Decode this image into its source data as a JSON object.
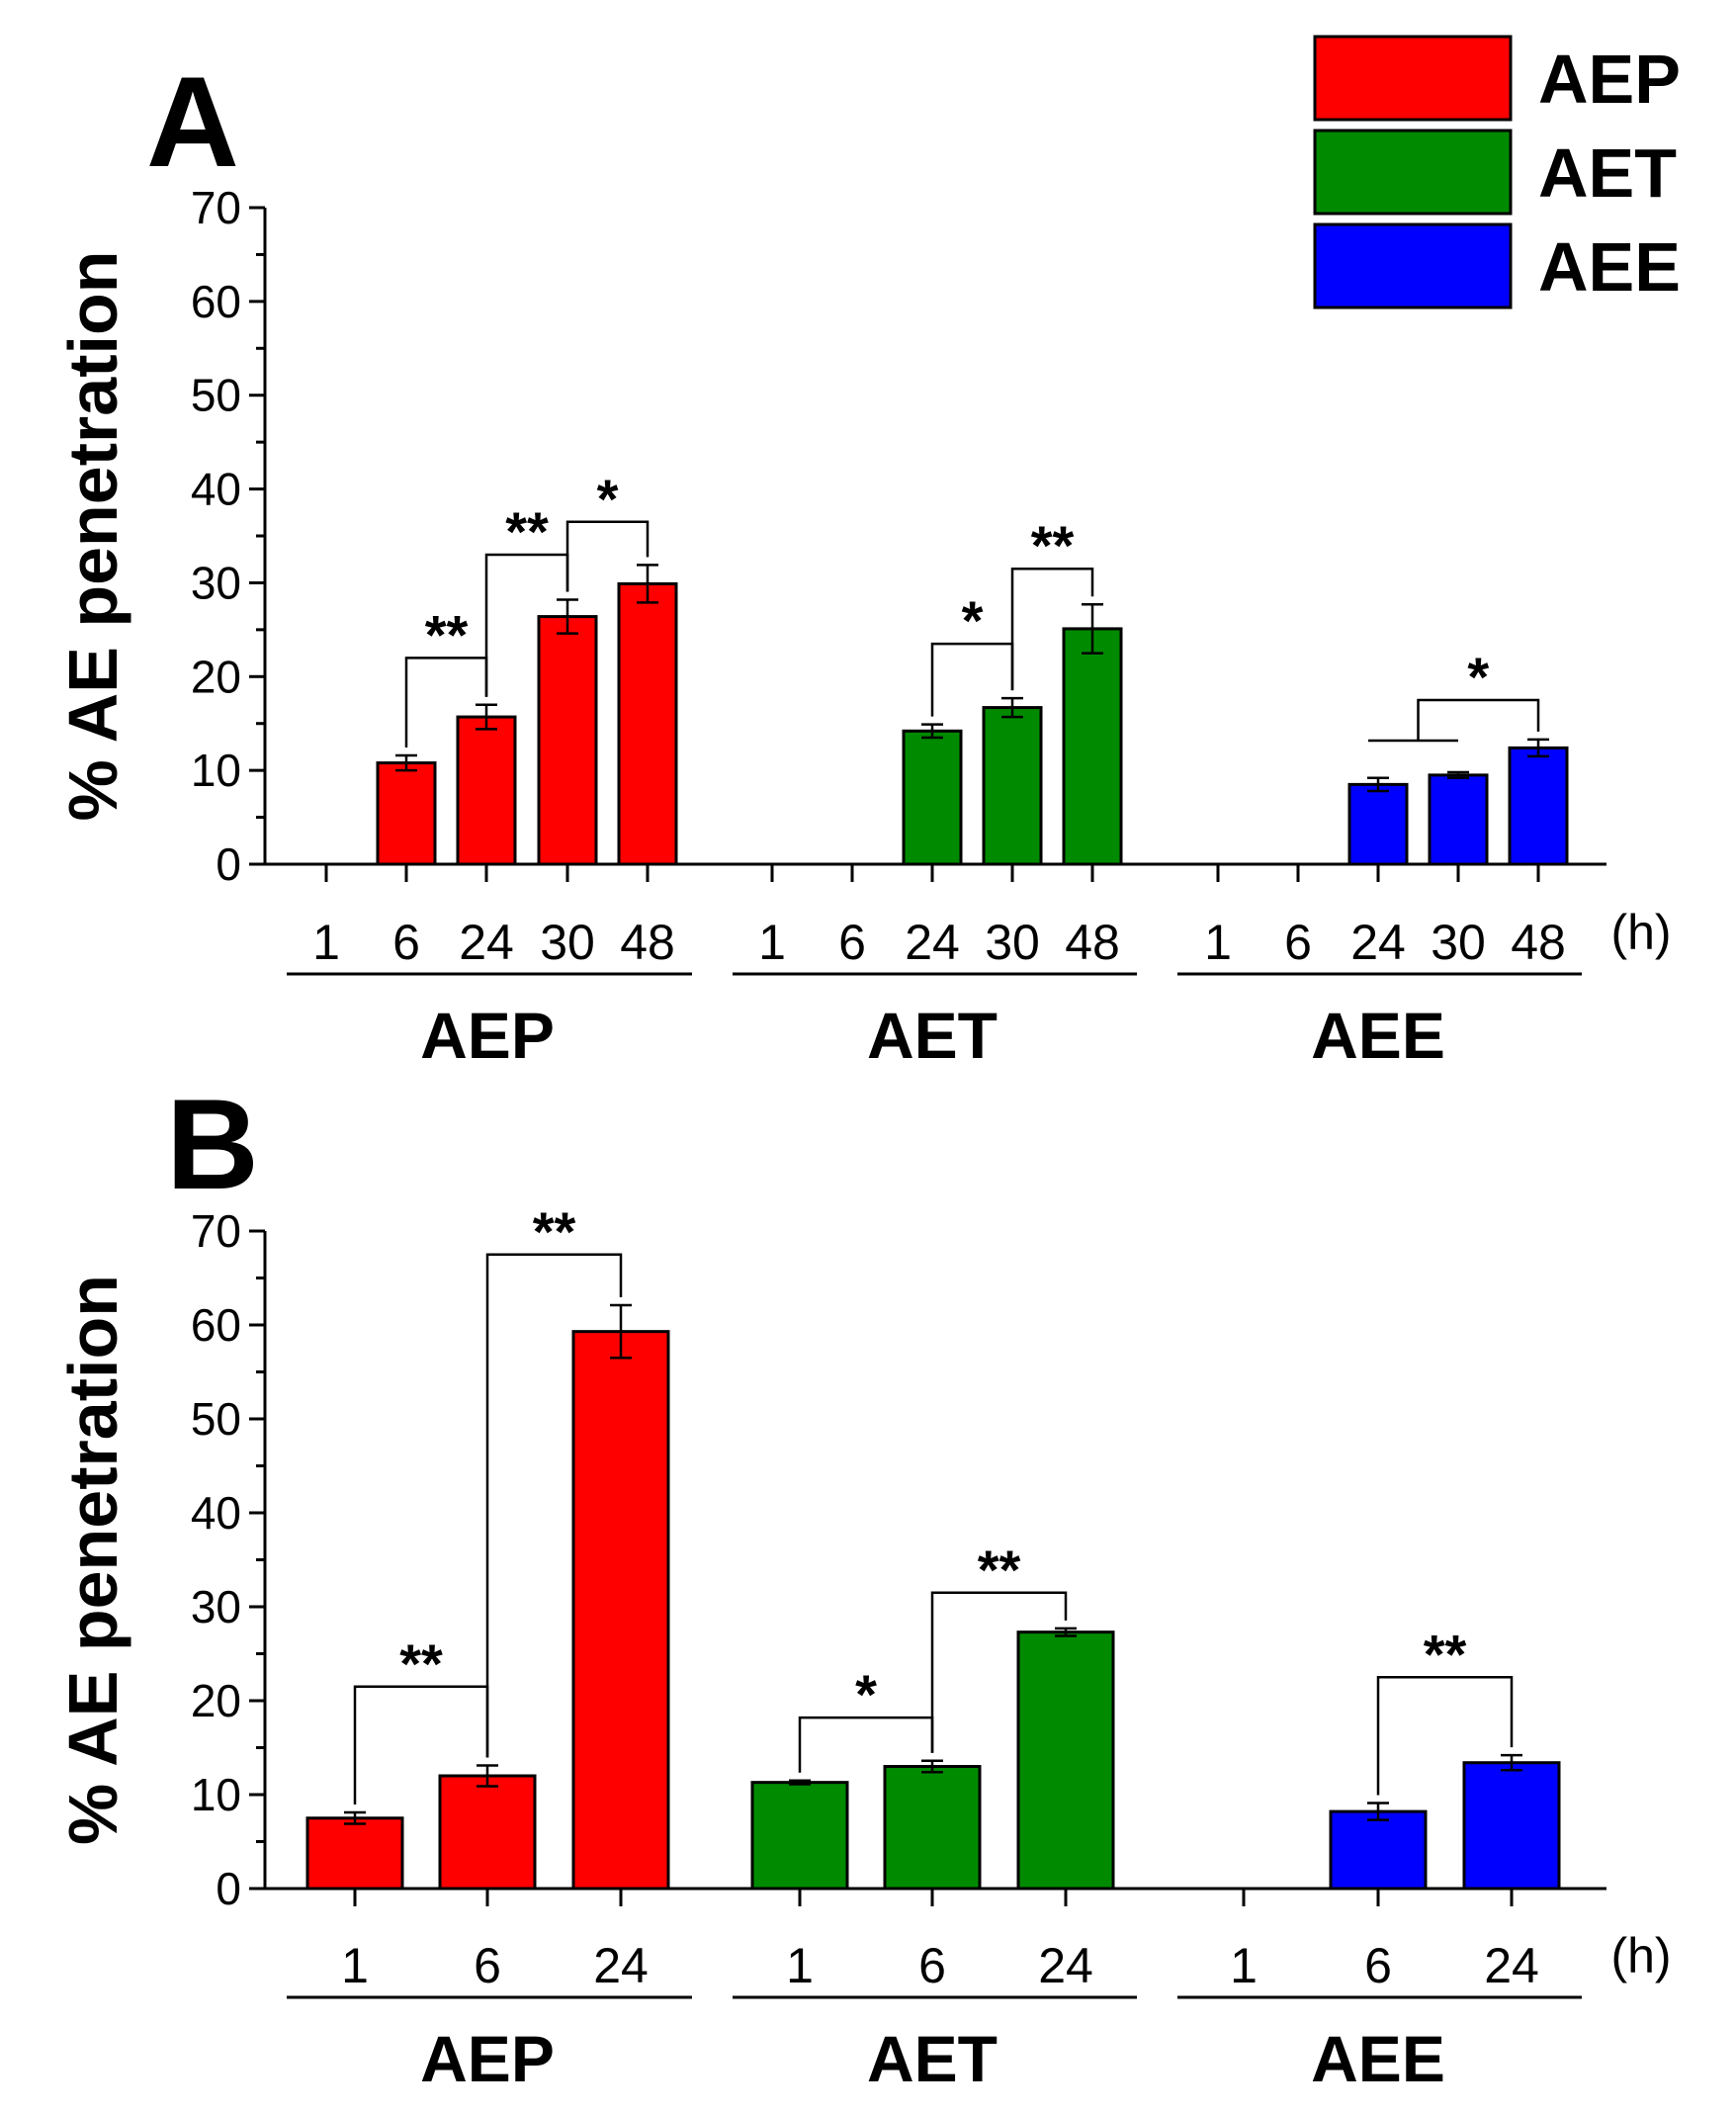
{
  "colors": {
    "AEP": "#ff0000",
    "AET": "#008a00",
    "AEE": "#0000ff"
  },
  "legend": [
    {
      "label": "AEP",
      "color": "#ff0000"
    },
    {
      "label": "AET",
      "color": "#008a00"
    },
    {
      "label": "AEE",
      "color": "#0000ff"
    }
  ],
  "chart_data": [
    {
      "panel": "A",
      "type": "bar",
      "ylabel": "% AE penetration",
      "ylim": [
        0,
        70
      ],
      "yticks": [
        0,
        10,
        20,
        30,
        40,
        50,
        60,
        70
      ],
      "x_unit": "(h)",
      "groups": [
        {
          "name": "AEP",
          "times": [
            "1",
            "6",
            "24",
            "30",
            "48"
          ],
          "values": [
            null,
            10.8,
            15.7,
            26.4,
            29.9
          ],
          "errors": [
            null,
            0.8,
            1.3,
            1.8,
            2.0
          ]
        },
        {
          "name": "AET",
          "times": [
            "1",
            "6",
            "24",
            "30",
            "48"
          ],
          "values": [
            null,
            null,
            14.2,
            16.7,
            25.1
          ],
          "errors": [
            null,
            null,
            0.7,
            1.0,
            2.6
          ]
        },
        {
          "name": "AEE",
          "times": [
            "1",
            "6",
            "24",
            "30",
            "48"
          ],
          "values": [
            null,
            null,
            8.5,
            9.5,
            12.4
          ],
          "errors": [
            null,
            null,
            0.7,
            0.3,
            0.9
          ]
        }
      ],
      "significance": [
        {
          "group": "AEP",
          "from": "6",
          "to": "24",
          "label": "**",
          "y": 22
        },
        {
          "group": "AEP",
          "from": "24",
          "to": "30",
          "label": "**",
          "y": 33
        },
        {
          "group": "AEP",
          "from": "30",
          "to": "48",
          "label": "*",
          "y": 36.5
        },
        {
          "group": "AET",
          "from": "24",
          "to": "30",
          "label": "*",
          "y": 23.5
        },
        {
          "group": "AET",
          "from": "30",
          "to": "48",
          "label": "**",
          "y": 31.5
        },
        {
          "group": "AEE",
          "from": "24-30",
          "to": "48",
          "label": "*",
          "y": 17.5
        }
      ]
    },
    {
      "panel": "B",
      "type": "bar",
      "ylabel": "% AE penetration",
      "ylim": [
        0,
        70
      ],
      "yticks": [
        0,
        10,
        20,
        30,
        40,
        50,
        60,
        70
      ],
      "x_unit": "(h)",
      "groups": [
        {
          "name": "AEP",
          "times": [
            "1",
            "6",
            "24"
          ],
          "values": [
            7.5,
            12.0,
            59.3
          ],
          "errors": [
            0.6,
            1.1,
            2.8
          ]
        },
        {
          "name": "AET",
          "times": [
            "1",
            "6",
            "24"
          ],
          "values": [
            11.3,
            13.0,
            27.3
          ],
          "errors": [
            0.2,
            0.6,
            0.4
          ]
        },
        {
          "name": "AEE",
          "times": [
            "1",
            "6",
            "24"
          ],
          "values": [
            null,
            8.2,
            13.4
          ],
          "errors": [
            null,
            0.9,
            0.8
          ]
        }
      ],
      "significance": [
        {
          "group": "AEP",
          "from": "1",
          "to": "6",
          "label": "**",
          "y": 21.5
        },
        {
          "group": "AEP",
          "from": "6",
          "to": "24",
          "label": "**",
          "y": 67.5
        },
        {
          "group": "AET",
          "from": "1",
          "to": "6",
          "label": "*",
          "y": 18.2
        },
        {
          "group": "AET",
          "from": "6",
          "to": "24",
          "label": "**",
          "y": 31.5
        },
        {
          "group": "AEE",
          "from": "6",
          "to": "24",
          "label": "**",
          "y": 22.5
        }
      ]
    }
  ]
}
